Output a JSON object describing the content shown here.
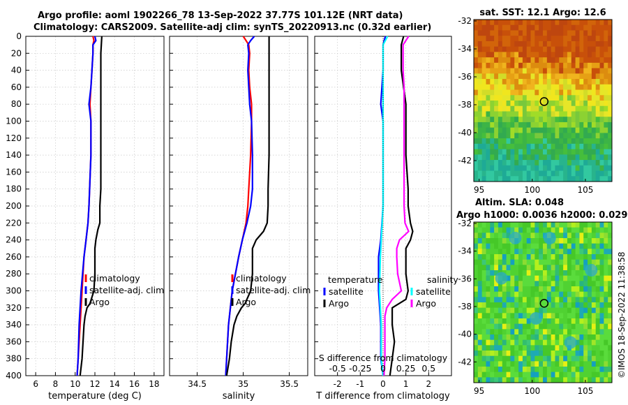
{
  "title": {
    "line1": "Argo profile: aoml 1902266_78 13-Sep-2022 37.77S 101.12E (NRT data)",
    "line2": "Climatology: CARS2009. Satellite-adj clim: synTS_20220913.nc (0.32d earlier)"
  },
  "side_stamp": "©IMOS 18-Sep-2022 11:38:58",
  "chart_data": [
    {
      "type": "line",
      "panel": "temperature",
      "xlabel": "temperature (deg C)",
      "xlim": [
        5,
        19
      ],
      "xticks": [
        6,
        8,
        10,
        12,
        14,
        16,
        18
      ],
      "ylim": [
        0,
        400
      ],
      "yticks": [
        0,
        20,
        40,
        60,
        80,
        100,
        120,
        140,
        160,
        180,
        200,
        220,
        240,
        260,
        280,
        300,
        320,
        340,
        360,
        380,
        400
      ],
      "y_reversed": true,
      "grid": true,
      "legend": [
        "climatology",
        "satellite-adj. clim",
        "Argo"
      ],
      "legend_position": "bottom-right",
      "series": [
        {
          "name": "climatology",
          "color": "#ff0000",
          "pressure": [
            0,
            5,
            10,
            20,
            40,
            60,
            80,
            100,
            140,
            200,
            220,
            240,
            260,
            300,
            340,
            380,
            400
          ],
          "values": [
            11.8,
            11.9,
            11.8,
            11.8,
            11.7,
            11.6,
            11.5,
            11.6,
            11.6,
            11.4,
            11.3,
            11.1,
            10.9,
            10.7,
            10.5,
            10.3,
            10.2
          ]
        },
        {
          "name": "satellite-adj. clim",
          "color": "#0000ff",
          "pressure": [
            0,
            5,
            10,
            20,
            40,
            60,
            80,
            100,
            140,
            200,
            220,
            240,
            260,
            300,
            340,
            380,
            400
          ],
          "values": [
            12.0,
            12.1,
            11.8,
            11.8,
            11.7,
            11.6,
            11.4,
            11.6,
            11.6,
            11.4,
            11.3,
            11.1,
            10.9,
            10.6,
            10.4,
            10.3,
            10.2
          ]
        },
        {
          "name": "Argo",
          "color": "#000000",
          "pressure": [
            0,
            20,
            60,
            100,
            140,
            180,
            200,
            220,
            228,
            240,
            250,
            280,
            300,
            315,
            320,
            330,
            340,
            360,
            380,
            400
          ],
          "values": [
            12.7,
            12.6,
            12.6,
            12.6,
            12.6,
            12.6,
            12.5,
            12.5,
            12.3,
            12.1,
            12.0,
            12.0,
            11.9,
            11.5,
            11.2,
            11.0,
            10.9,
            10.8,
            10.7,
            10.5
          ]
        }
      ]
    },
    {
      "type": "line",
      "panel": "salinity",
      "xlabel": "salinity",
      "xlim": [
        34.2,
        35.7
      ],
      "xticks": [
        34.5,
        35,
        35.5
      ],
      "ylim": [
        0,
        400
      ],
      "y_reversed": true,
      "grid": true,
      "legend": [
        "climatology",
        "satellite-adj. clim",
        "Argo"
      ],
      "legend_position": "bottom-right",
      "series": [
        {
          "name": "climatology",
          "color": "#ff0000",
          "pressure": [
            0,
            5,
            10,
            20,
            40,
            60,
            80,
            100,
            140,
            180,
            200,
            220,
            240,
            260,
            300,
            340,
            380,
            400
          ],
          "values": [
            35.0,
            35.03,
            35.06,
            35.07,
            35.06,
            35.07,
            35.09,
            35.09,
            35.08,
            35.06,
            35.05,
            35.03,
            34.99,
            34.95,
            34.88,
            34.84,
            34.82,
            34.81
          ]
        },
        {
          "name": "satellite-adj. clim",
          "color": "#0000ff",
          "pressure": [
            0,
            5,
            10,
            20,
            40,
            60,
            80,
            100,
            140,
            180,
            200,
            220,
            240,
            260,
            300,
            340,
            380,
            400
          ],
          "values": [
            35.12,
            35.08,
            35.05,
            35.06,
            35.05,
            35.06,
            35.07,
            35.09,
            35.1,
            35.1,
            35.08,
            35.04,
            34.99,
            34.95,
            34.88,
            34.84,
            34.82,
            34.81
          ]
        },
        {
          "name": "Argo",
          "color": "#000000",
          "pressure": [
            0,
            20,
            60,
            100,
            140,
            180,
            200,
            220,
            230,
            240,
            250,
            280,
            300,
            315,
            320,
            330,
            340,
            360,
            380,
            400
          ],
          "values": [
            35.28,
            35.28,
            35.28,
            35.28,
            35.28,
            35.27,
            35.27,
            35.26,
            35.22,
            35.14,
            35.1,
            35.1,
            35.08,
            35.02,
            34.98,
            34.93,
            34.9,
            34.87,
            34.85,
            34.82
          ]
        }
      ]
    },
    {
      "type": "line",
      "panel": "difference",
      "xlabel": "T difference from climatology",
      "top_label": "S difference from climatology",
      "xlim": [
        -3,
        3
      ],
      "xticks": [
        -2,
        -1,
        0,
        1,
        2
      ],
      "top_ticks": [
        -0.5,
        -0.25,
        0,
        0.25,
        0.5
      ],
      "top_tick_labels": [
        "-0.5",
        "-0.25",
        "0",
        "0.25",
        "0.5"
      ],
      "ylim": [
        0,
        400
      ],
      "y_reversed": true,
      "grid": true,
      "legend_left_title": "temperature",
      "legend_right_title": "salinity",
      "legend_left": [
        "satellite",
        "Argo"
      ],
      "legend_right": [
        "satellite",
        "Argo"
      ],
      "series": [
        {
          "name": "temperature satellite",
          "color": "#0000ff",
          "pressure": [
            0,
            10,
            20,
            40,
            80,
            100,
            140,
            200,
            240,
            260,
            300,
            340,
            380,
            400
          ],
          "values": [
            0.1,
            0.0,
            0.0,
            0.0,
            -0.1,
            0.0,
            0.0,
            0.0,
            -0.1,
            -0.2,
            -0.2,
            -0.1,
            -0.1,
            0.0
          ]
        },
        {
          "name": "temperature Argo",
          "color": "#000000",
          "pressure": [
            0,
            10,
            20,
            40,
            60,
            80,
            100,
            140,
            180,
            200,
            220,
            230,
            240,
            250,
            260,
            280,
            300,
            310,
            320,
            330,
            340,
            360,
            380,
            400
          ],
          "values": [
            0.9,
            0.8,
            0.8,
            0.8,
            0.9,
            1.0,
            1.0,
            1.0,
            1.1,
            1.1,
            1.2,
            1.3,
            1.2,
            1.0,
            1.0,
            1.0,
            1.1,
            1.0,
            0.4,
            0.4,
            0.4,
            0.5,
            0.4,
            0.3
          ]
        },
        {
          "name": "salinity satellite",
          "color": "#00ffff",
          "pressure": [
            0,
            10,
            20,
            40,
            80,
            100,
            140,
            200,
            240,
            260,
            300,
            340,
            380,
            400
          ],
          "values": [
            0.05,
            0.0,
            0.0,
            0.0,
            0.0,
            0.0,
            0.0,
            0.0,
            -0.02,
            -0.03,
            -0.04,
            -0.02,
            -0.02,
            0.0
          ]
        },
        {
          "name": "salinity Argo",
          "color": "#ff00ff",
          "pressure": [
            0,
            10,
            20,
            40,
            60,
            80,
            100,
            140,
            180,
            200,
            220,
            230,
            240,
            250,
            260,
            280,
            300,
            310,
            320,
            330,
            340,
            360,
            380,
            400
          ],
          "values": [
            0.28,
            0.22,
            0.22,
            0.22,
            0.23,
            0.23,
            0.23,
            0.23,
            0.23,
            0.23,
            0.24,
            0.28,
            0.18,
            0.15,
            0.15,
            0.16,
            0.2,
            0.1,
            0.04,
            0.02,
            0.02,
            0.02,
            0.02,
            0.01
          ]
        }
      ]
    },
    {
      "type": "heatmap",
      "panel": "sst_map",
      "title": "sat. SST: 12.1 Argo: 12.6",
      "xticks": [
        95,
        100,
        105
      ],
      "yticks": [
        -32,
        -34,
        -36,
        -38,
        -40,
        -42
      ],
      "xlim": [
        94.5,
        107.5
      ],
      "ylim": [
        -43.5,
        -31.9
      ],
      "marker": {
        "lon": 101.12,
        "lat": -37.77
      }
    },
    {
      "type": "heatmap",
      "panel": "sla_map",
      "title": "Altim. SLA: 0.048",
      "subtitle": "Argo h1000: 0.0036 h2000: 0.029",
      "xticks": [
        95,
        100,
        105
      ],
      "yticks": [
        -32,
        -34,
        -36,
        -38,
        -40,
        -42
      ],
      "xlim": [
        94.5,
        107.5
      ],
      "ylim": [
        -43.5,
        -31.9
      ],
      "marker": {
        "lon": 101.12,
        "lat": -37.77
      }
    }
  ]
}
